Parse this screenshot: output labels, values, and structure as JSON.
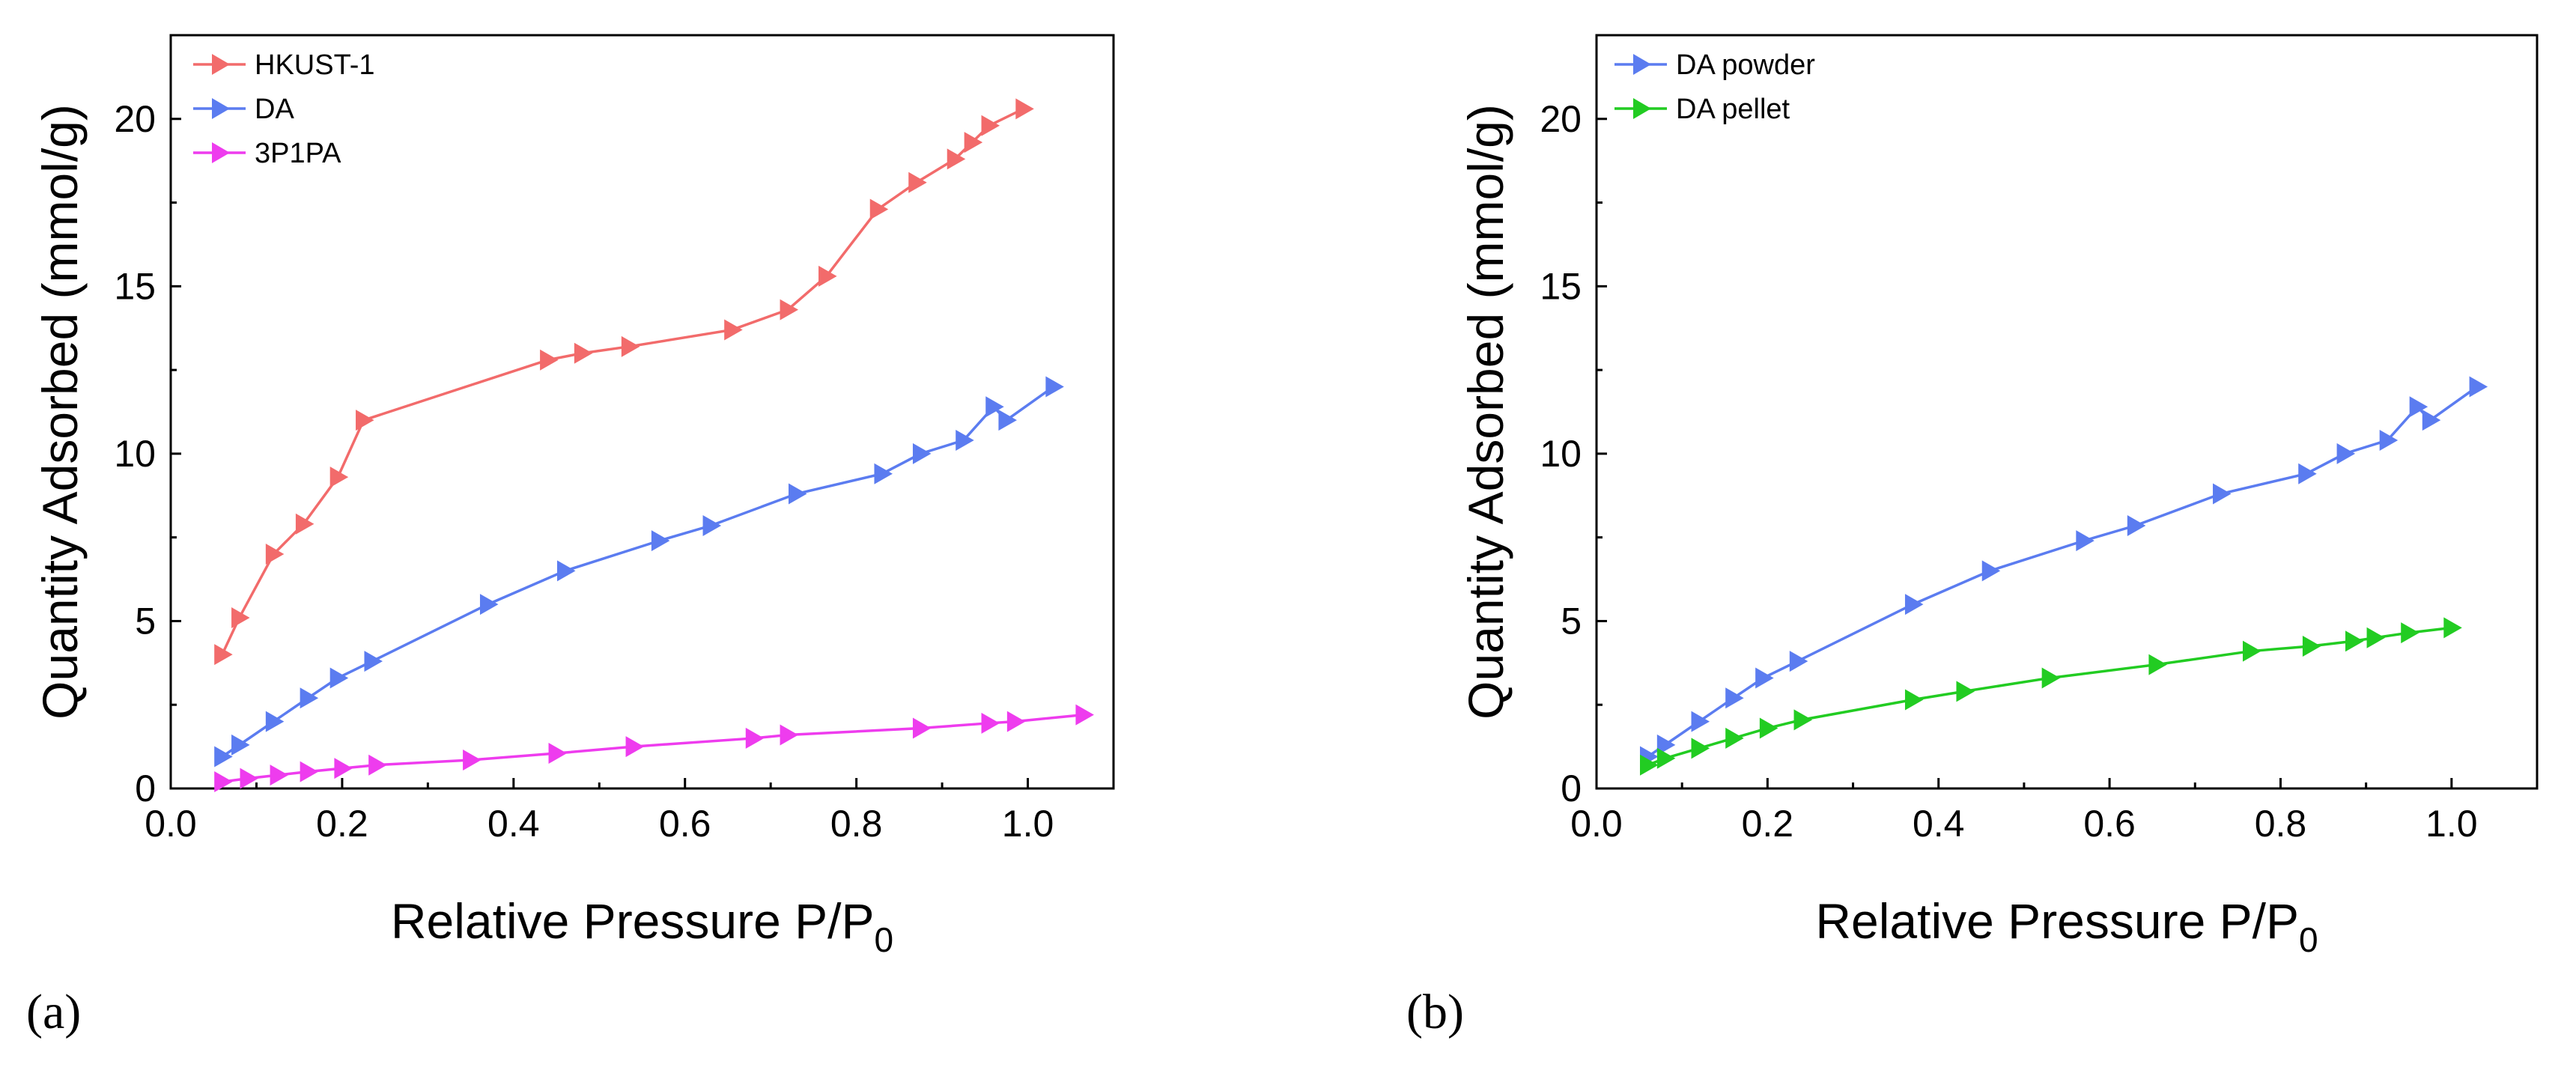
{
  "colors": {
    "HKUST-1": "#f26b6b",
    "DA": "#5b7cf0",
    "3P1PA": "#ee3cee",
    "DA powder": "#5b7cf0",
    "DA pellet": "#22cc22"
  },
  "chart_data": [
    {
      "type": "line",
      "panel_label": "(a)",
      "xlabel": "Relative Pressure P/P",
      "xlabel_subscript": "0",
      "ylabel": "Quantity Adsorbed (mmol/g)",
      "xlim": [
        0.0,
        1.1
      ],
      "ylim": [
        0,
        22.5
      ],
      "xticks": [
        0.0,
        0.2,
        0.4,
        0.6,
        0.8,
        1.0
      ],
      "yticks": [
        0,
        5,
        10,
        15,
        20
      ],
      "xtick_labels": [
        "0.0",
        "0.2",
        "0.4",
        "0.6",
        "0.8",
        "1.0"
      ],
      "ytick_labels": [
        "0",
        "5",
        "10",
        "15",
        "20"
      ],
      "legend_position": "top-left",
      "marker": "right-triangle",
      "series": [
        {
          "name": "HKUST-1",
          "x": [
            0.06,
            0.08,
            0.12,
            0.155,
            0.195,
            0.225,
            0.44,
            0.48,
            0.535,
            0.655,
            0.72,
            0.765,
            0.825,
            0.87,
            0.915,
            0.935,
            0.955,
            0.995
          ],
          "y": [
            4.0,
            5.1,
            7.0,
            7.9,
            9.3,
            11.0,
            12.8,
            13.0,
            13.2,
            13.7,
            14.3,
            15.3,
            17.3,
            18.1,
            18.8,
            19.3,
            19.8,
            20.3
          ]
        },
        {
          "name": "DA",
          "x": [
            0.06,
            0.08,
            0.12,
            0.16,
            0.195,
            0.235,
            0.37,
            0.46,
            0.57,
            0.63,
            0.73,
            0.83,
            0.875,
            0.925,
            0.96,
            0.975,
            1.03
          ],
          "y": [
            0.95,
            1.3,
            2.0,
            2.7,
            3.3,
            3.8,
            5.5,
            6.5,
            7.4,
            7.85,
            8.8,
            9.4,
            10.0,
            10.4,
            11.4,
            11.0,
            12.0
          ]
        },
        {
          "name": "3P1PA",
          "x": [
            0.06,
            0.09,
            0.125,
            0.16,
            0.2,
            0.24,
            0.35,
            0.45,
            0.54,
            0.68,
            0.72,
            0.875,
            0.955,
            0.985,
            1.065
          ],
          "y": [
            0.2,
            0.3,
            0.4,
            0.5,
            0.6,
            0.7,
            0.85,
            1.05,
            1.25,
            1.5,
            1.6,
            1.8,
            1.95,
            2.0,
            2.2
          ]
        }
      ]
    },
    {
      "type": "line",
      "panel_label": "(b)",
      "xlabel": "Relative Pressure P/P",
      "xlabel_subscript": "0",
      "ylabel": "Quantity Adsorbed (mmol/g)",
      "xlim": [
        0.0,
        1.1
      ],
      "ylim": [
        0,
        22.5
      ],
      "xticks": [
        0.0,
        0.2,
        0.4,
        0.6,
        0.8,
        1.0
      ],
      "yticks": [
        0,
        5,
        10,
        15,
        20
      ],
      "xtick_labels": [
        "0.0",
        "0.2",
        "0.4",
        "0.6",
        "0.8",
        "1.0"
      ],
      "ytick_labels": [
        "0",
        "5",
        "10",
        "15",
        "20"
      ],
      "legend_position": "top-left",
      "marker": "right-triangle",
      "series": [
        {
          "name": "DA powder",
          "x": [
            0.06,
            0.08,
            0.12,
            0.16,
            0.195,
            0.235,
            0.37,
            0.46,
            0.57,
            0.63,
            0.73,
            0.83,
            0.875,
            0.925,
            0.96,
            0.975,
            1.03
          ],
          "y": [
            0.95,
            1.3,
            2.0,
            2.7,
            3.3,
            3.8,
            5.5,
            6.5,
            7.4,
            7.85,
            8.8,
            9.4,
            10.0,
            10.4,
            11.4,
            11.0,
            12.0
          ]
        },
        {
          "name": "DA pellet",
          "x": [
            0.06,
            0.08,
            0.12,
            0.16,
            0.2,
            0.24,
            0.37,
            0.43,
            0.53,
            0.655,
            0.765,
            0.835,
            0.885,
            0.91,
            0.95,
            1.0
          ],
          "y": [
            0.7,
            0.9,
            1.2,
            1.5,
            1.8,
            2.05,
            2.65,
            2.9,
            3.3,
            3.7,
            4.1,
            4.25,
            4.4,
            4.5,
            4.65,
            4.8
          ]
        }
      ]
    }
  ]
}
